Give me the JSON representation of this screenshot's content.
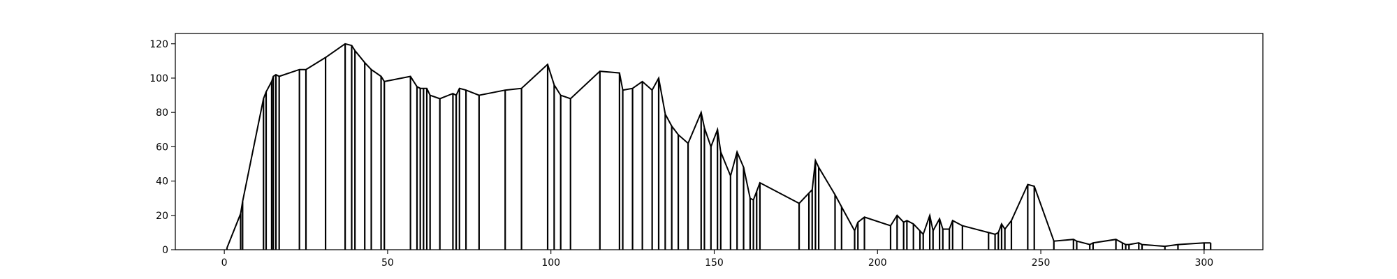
{
  "chart_data": {
    "type": "line",
    "title": "",
    "xlabel": "",
    "ylabel": "",
    "xlim": [
      -15,
      318
    ],
    "ylim": [
      0,
      126
    ],
    "xticks": [
      0,
      50,
      100,
      150,
      200,
      250,
      300
    ],
    "yticks": [
      0,
      20,
      40,
      60,
      80,
      100,
      120
    ],
    "grid": false,
    "legend": "none",
    "line_color": "#000000",
    "series": [
      {
        "x": [
          0.8,
          5,
          5.6,
          12,
          12.8,
          14.5,
          15,
          15.8,
          16.8,
          23,
          25,
          31,
          37,
          39,
          40,
          43,
          45,
          48,
          49,
          57,
          59,
          60,
          61,
          62,
          63,
          66,
          70,
          71,
          72,
          74,
          78,
          86,
          91,
          99,
          101,
          103,
          106,
          115,
          121,
          122,
          125,
          128,
          131,
          133,
          135,
          137,
          139,
          142,
          146,
          147,
          149,
          151,
          152,
          155,
          157,
          159,
          161,
          162,
          163,
          164,
          176,
          179,
          180,
          181,
          182,
          187,
          189,
          193,
          194,
          196,
          204,
          206,
          208,
          209,
          211,
          213,
          214,
          216,
          217,
          219,
          220,
          222,
          223,
          226,
          234,
          236,
          237,
          238,
          239,
          241,
          246,
          248,
          254,
          260,
          261,
          265,
          266,
          273,
          275,
          276,
          277,
          280,
          281,
          288,
          292,
          300,
          302
        ],
        "y": [
          1,
          21,
          28,
          88,
          92,
          98,
          101,
          102,
          101,
          105,
          105,
          112,
          120,
          119,
          116,
          109,
          105,
          101,
          98,
          101,
          95,
          94,
          94,
          94,
          90,
          88,
          91,
          90,
          94,
          93,
          90,
          93,
          94,
          108,
          96,
          90,
          88,
          104,
          103,
          93,
          94,
          98,
          93,
          100,
          79,
          72,
          67,
          62,
          80,
          71,
          60,
          70,
          57,
          43,
          57,
          48,
          30,
          29,
          34,
          39,
          27,
          33,
          35,
          52,
          48,
          32,
          25,
          11,
          16,
          19,
          14,
          20,
          16,
          17,
          15,
          11,
          9,
          20,
          11,
          18,
          12,
          12,
          17,
          14,
          10,
          9,
          10,
          15,
          12,
          17,
          38,
          37,
          5,
          6,
          5,
          3,
          4,
          6,
          4,
          3,
          3,
          4,
          3,
          2,
          3,
          4,
          4
        ]
      }
    ]
  }
}
